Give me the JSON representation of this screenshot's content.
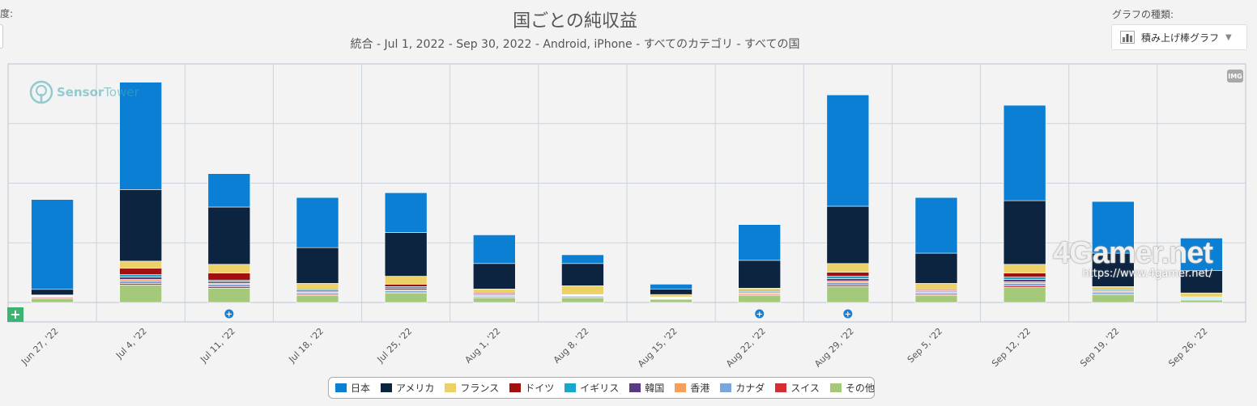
{
  "page": {
    "left_cut_label": "度:",
    "title": "国ごとの純収益",
    "subtitle": "統合 - Jul 1, 2022 - Sep 30, 2022 - Android, iPhone - すべてのカテゴリ - すべての国",
    "chart_type_label": "グラフの種類:",
    "chart_type_value": "積み上げ棒グラフ",
    "img_button": "IMG",
    "plus_button": "+",
    "logo": {
      "part1": "Sensor",
      "part2": "Tower"
    },
    "watermark": {
      "main": "4Gamer.net",
      "url": "https://www.4gamer.net/"
    }
  },
  "chart_data": {
    "type": "bar",
    "stacked": true,
    "title": "国ごとの純収益",
    "subtitle": "統合 - Jul 1, 2022 - Sep 30, 2022 - Android, iPhone - すべてのカテゴリ - すべての国",
    "xlabel": "",
    "ylabel": "",
    "y_tick_labels_visible": false,
    "ylim": [
      0,
      300
    ],
    "grid": true,
    "legend_position": "bottom",
    "categories": [
      "Jun 27, '22",
      "Jul 4, '22",
      "Jul 11, '22",
      "Jul 18, '22",
      "Jul 25, '22",
      "Aug 1, '22",
      "Aug 8, '22",
      "Aug 15, '22",
      "Aug 22, '22",
      "Aug 29, '22",
      "Sep 5, '22",
      "Sep 12, '22",
      "Sep 19, '22",
      "Sep 26, '22"
    ],
    "series": [
      {
        "name": "その他",
        "color": "#a5c97a",
        "values": [
          5,
          22,
          18,
          9,
          12,
          6,
          6,
          4,
          9,
          20,
          9,
          19,
          10,
          3
        ]
      },
      {
        "name": "スイス",
        "color": "#d42e2e",
        "values": [
          1,
          2,
          2,
          1,
          1,
          1,
          1,
          0.5,
          1,
          2,
          1,
          2,
          1,
          0.5
        ]
      },
      {
        "name": "カナダ",
        "color": "#7aa6e0",
        "values": [
          1,
          3,
          3,
          2,
          2,
          1,
          1,
          0.5,
          1,
          3,
          2,
          3,
          2,
          1
        ]
      },
      {
        "name": "香港",
        "color": "#f5a05a",
        "values": [
          0.5,
          2,
          1,
          1,
          1,
          1,
          0.5,
          0.5,
          1,
          2,
          1,
          2,
          1,
          0.5
        ]
      },
      {
        "name": "韓国",
        "color": "#5a3a80",
        "values": [
          0.5,
          3,
          2,
          1,
          2,
          1,
          0.5,
          0.5,
          1,
          3,
          1,
          3,
          1,
          0.5
        ]
      },
      {
        "name": "イギリス",
        "color": "#1aa7c9",
        "values": [
          0.5,
          3,
          2,
          2,
          2,
          1,
          0.5,
          0.5,
          1,
          3,
          1,
          3,
          1,
          1
        ]
      },
      {
        "name": "ドイツ",
        "color": "#a01010",
        "values": [
          0.5,
          8,
          9,
          1,
          3,
          1,
          0.5,
          0.5,
          1,
          5,
          1,
          5,
          1,
          0.5
        ]
      },
      {
        "name": "フランス",
        "color": "#ecd068",
        "values": [
          0.5,
          9,
          11,
          7,
          10,
          5,
          11,
          3,
          3,
          11,
          8,
          11,
          3,
          5
        ]
      },
      {
        "name": "アメリカ",
        "color": "#0d2440",
        "values": [
          7,
          90,
          72,
          45,
          55,
          32,
          28,
          7,
          35,
          72,
          38,
          80,
          42,
          28
        ]
      },
      {
        "name": "日本",
        "color": "#0a7fd4",
        "values": [
          113,
          135,
          42,
          63,
          50,
          36,
          11,
          6,
          45,
          140,
          70,
          120,
          65,
          41
        ]
      }
    ],
    "annotation_markers": [
      {
        "category": "Jul 11, '22",
        "label": "+"
      },
      {
        "category": "Aug 22, '22",
        "label": "+"
      },
      {
        "category": "Aug 29, '22",
        "label": "+"
      }
    ],
    "legend": [
      "日本",
      "アメリカ",
      "フランス",
      "ドイツ",
      "イギリス",
      "韓国",
      "香港",
      "カナダ",
      "スイス",
      "その他"
    ]
  }
}
